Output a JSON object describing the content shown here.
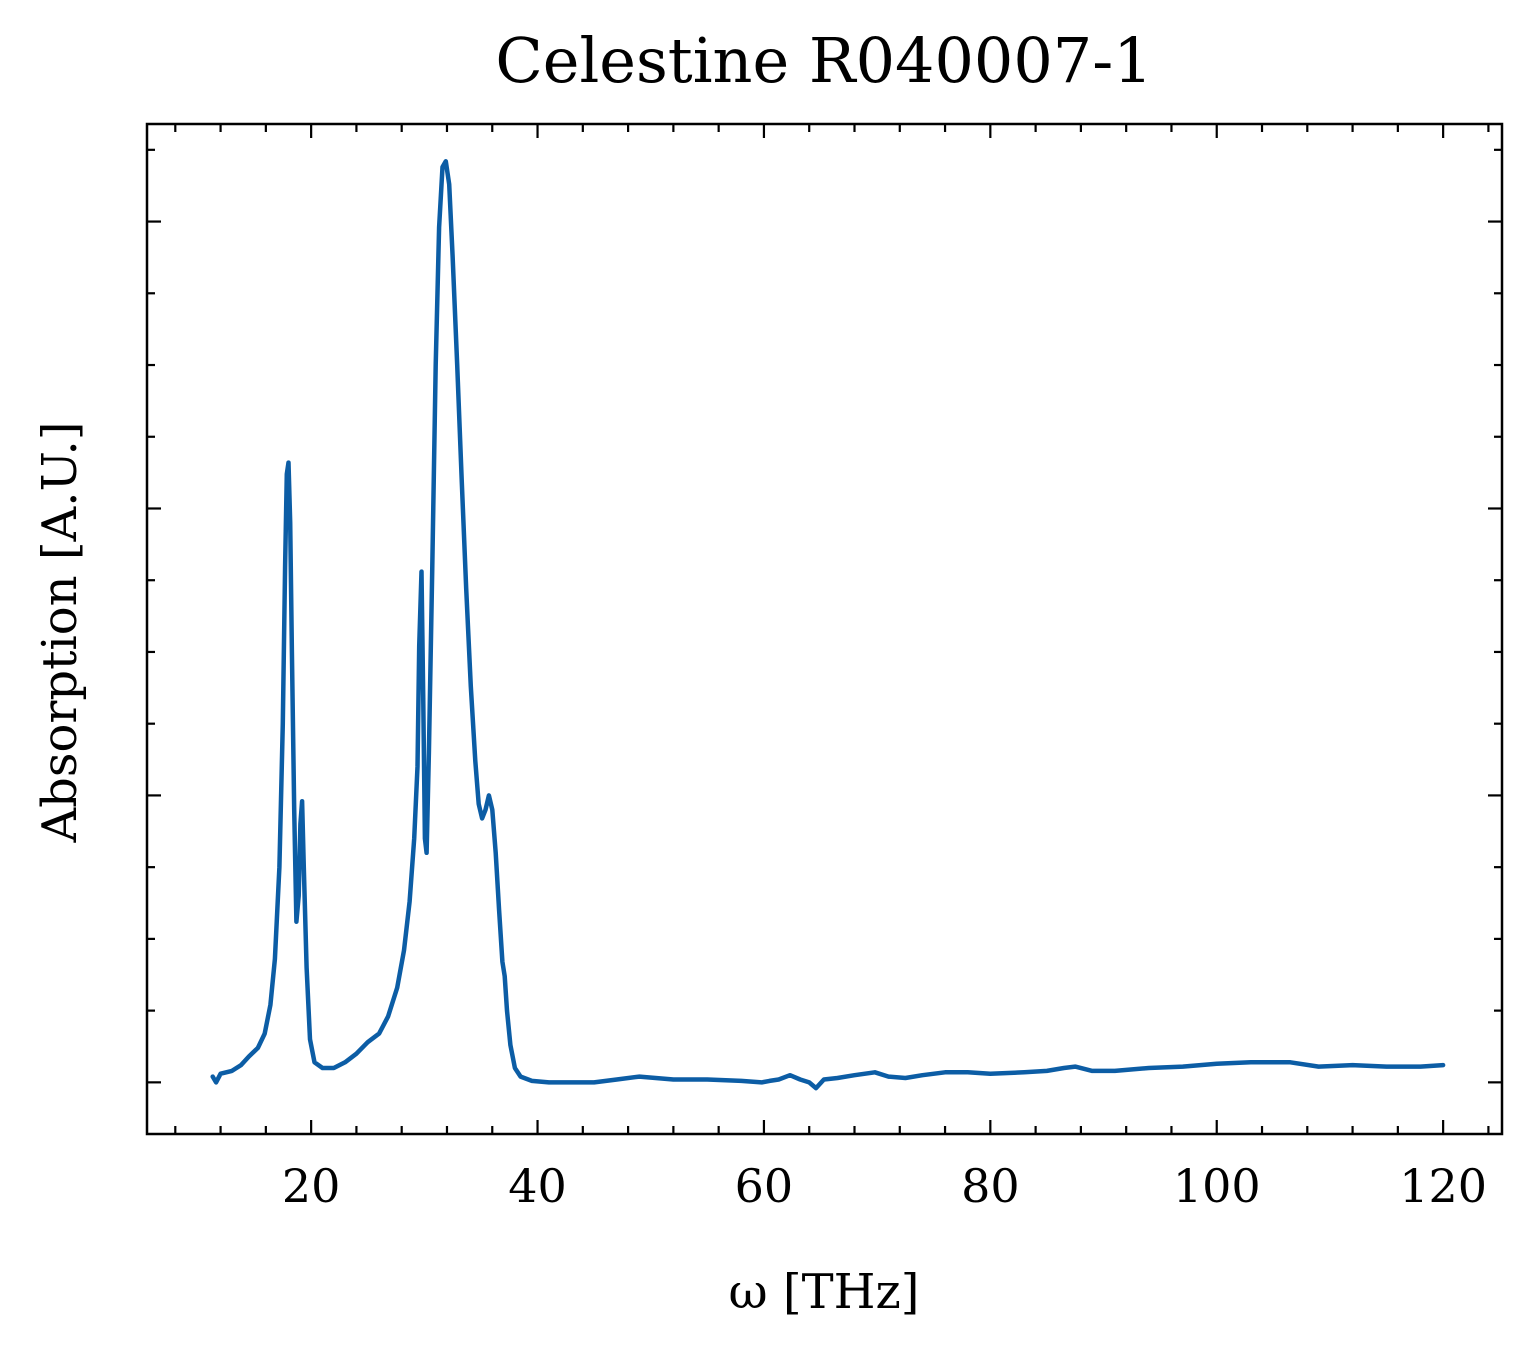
{
  "chart_data": {
    "type": "line",
    "title": "Celestine R040007-1",
    "xlabel": "ω [THz]",
    "ylabel": "Absorption [A.U.]",
    "xlim": [
      5.5,
      125.2
    ],
    "ylim": [
      -0.18,
      3.34
    ],
    "x_major_ticks": [
      20,
      40,
      60,
      80,
      100,
      120
    ],
    "x_tick_labels": [
      "20",
      "40",
      "60",
      "80",
      "100",
      "120"
    ],
    "x_minor_step": 4,
    "y_major_ticks": [
      0,
      1,
      2,
      3
    ],
    "y_minor_step": 0.25,
    "y_tick_labels_shown": false,
    "grid": false,
    "ticks_direction": "in",
    "series": [
      {
        "color": "#0c5da5",
        "points": [
          [
            11.3,
            0.02
          ],
          [
            11.6,
            0.0
          ],
          [
            12.0,
            0.03
          ],
          [
            13.0,
            0.04
          ],
          [
            13.8,
            0.06
          ],
          [
            14.5,
            0.09
          ],
          [
            15.3,
            0.12
          ],
          [
            15.9,
            0.17
          ],
          [
            16.4,
            0.27
          ],
          [
            16.8,
            0.43
          ],
          [
            17.2,
            0.75
          ],
          [
            17.5,
            1.25
          ],
          [
            17.7,
            1.8
          ],
          [
            17.85,
            2.12
          ],
          [
            18.0,
            2.16
          ],
          [
            18.15,
            1.95
          ],
          [
            18.3,
            1.5
          ],
          [
            18.5,
            0.95
          ],
          [
            18.7,
            0.56
          ],
          [
            18.9,
            0.65
          ],
          [
            19.05,
            0.9
          ],
          [
            19.2,
            0.98
          ],
          [
            19.35,
            0.75
          ],
          [
            19.6,
            0.4
          ],
          [
            19.9,
            0.15
          ],
          [
            20.3,
            0.07
          ],
          [
            21.0,
            0.05
          ],
          [
            22.0,
            0.05
          ],
          [
            23.0,
            0.07
          ],
          [
            24.0,
            0.1
          ],
          [
            25.0,
            0.14
          ],
          [
            26.0,
            0.17
          ],
          [
            26.8,
            0.23
          ],
          [
            27.6,
            0.33
          ],
          [
            28.2,
            0.46
          ],
          [
            28.7,
            0.63
          ],
          [
            29.1,
            0.85
          ],
          [
            29.4,
            1.1
          ],
          [
            29.55,
            1.52
          ],
          [
            29.75,
            1.78
          ],
          [
            29.9,
            1.35
          ],
          [
            30.05,
            0.85
          ],
          [
            30.2,
            0.8
          ],
          [
            30.4,
            1.15
          ],
          [
            30.7,
            1.8
          ],
          [
            31.0,
            2.5
          ],
          [
            31.3,
            2.98
          ],
          [
            31.6,
            3.19
          ],
          [
            31.9,
            3.21
          ],
          [
            32.2,
            3.13
          ],
          [
            32.5,
            2.88
          ],
          [
            32.9,
            2.5
          ],
          [
            33.3,
            2.1
          ],
          [
            33.7,
            1.72
          ],
          [
            34.1,
            1.38
          ],
          [
            34.5,
            1.12
          ],
          [
            34.8,
            0.97
          ],
          [
            35.1,
            0.92
          ],
          [
            35.4,
            0.95
          ],
          [
            35.7,
            1.0
          ],
          [
            36.0,
            0.95
          ],
          [
            36.3,
            0.8
          ],
          [
            36.6,
            0.6
          ],
          [
            36.9,
            0.42
          ],
          [
            37.1,
            0.37
          ],
          [
            37.3,
            0.25
          ],
          [
            37.6,
            0.13
          ],
          [
            38.0,
            0.05
          ],
          [
            38.5,
            0.02
          ],
          [
            39.5,
            0.005
          ],
          [
            41.0,
            0.0
          ],
          [
            43.0,
            0.0
          ],
          [
            45.0,
            0.0
          ],
          [
            47.0,
            0.01
          ],
          [
            49.0,
            0.02
          ],
          [
            52.0,
            0.01
          ],
          [
            55.0,
            0.01
          ],
          [
            58.0,
            0.005
          ],
          [
            59.8,
            0.0
          ],
          [
            60.5,
            0.005
          ],
          [
            61.3,
            0.01
          ],
          [
            62.3,
            0.025
          ],
          [
            63.2,
            0.01
          ],
          [
            64.0,
            0.0
          ],
          [
            64.6,
            -0.02
          ],
          [
            65.3,
            0.01
          ],
          [
            66.5,
            0.015
          ],
          [
            68.0,
            0.025
          ],
          [
            69.8,
            0.035
          ],
          [
            71.0,
            0.02
          ],
          [
            72.5,
            0.015
          ],
          [
            74.0,
            0.025
          ],
          [
            76.0,
            0.035
          ],
          [
            78.0,
            0.035
          ],
          [
            80.0,
            0.03
          ],
          [
            83.0,
            0.035
          ],
          [
            85.0,
            0.04
          ],
          [
            86.5,
            0.05
          ],
          [
            87.5,
            0.055
          ],
          [
            89.0,
            0.04
          ],
          [
            91.0,
            0.04
          ],
          [
            94.0,
            0.05
          ],
          [
            97.0,
            0.055
          ],
          [
            100.0,
            0.065
          ],
          [
            103.0,
            0.07
          ],
          [
            106.5,
            0.07
          ],
          [
            109.0,
            0.055
          ],
          [
            112.0,
            0.06
          ],
          [
            115.0,
            0.055
          ],
          [
            118.0,
            0.055
          ],
          [
            120.0,
            0.06
          ]
        ]
      }
    ]
  }
}
